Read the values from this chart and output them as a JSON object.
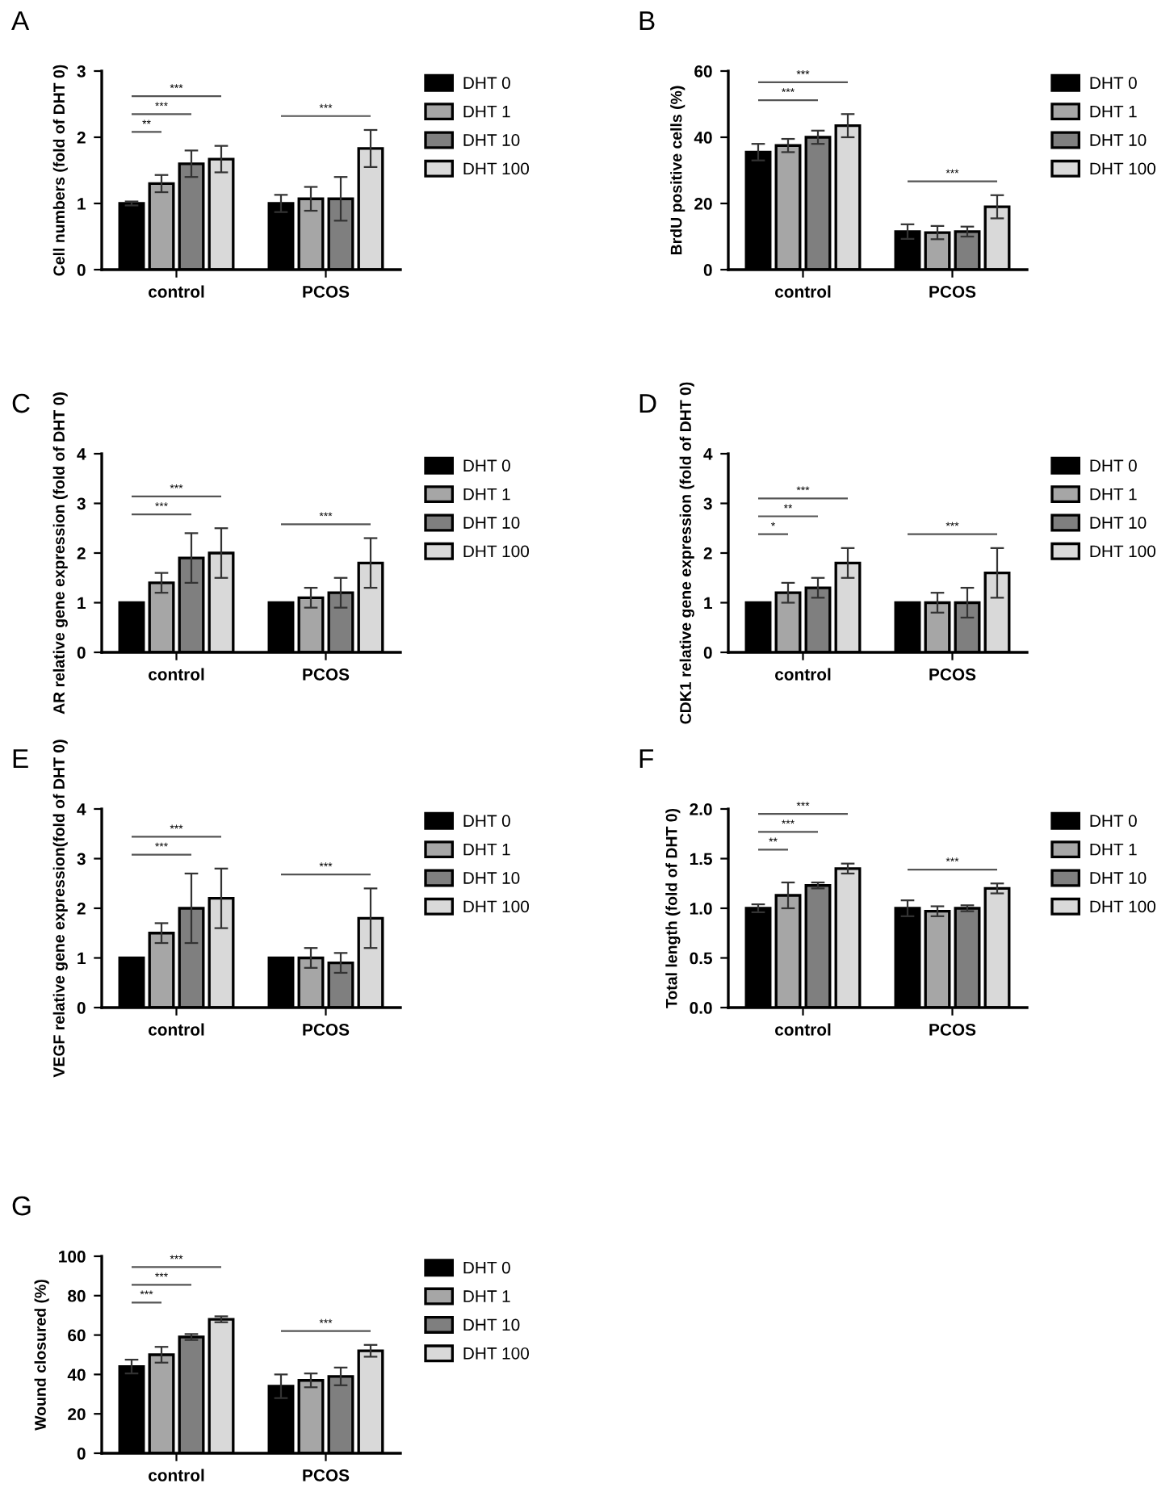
{
  "chart_data": [
    {
      "type": "bar",
      "title": "A",
      "ylabel": "Cell numbers (fold of DHT 0)",
      "categories": [
        "control",
        "PCOS"
      ],
      "legend": "right",
      "grid": false,
      "ylim": [
        0,
        3
      ],
      "yticks": [
        0,
        1,
        2,
        3
      ],
      "series": [
        {
          "name": "DHT 0",
          "color": "#000000",
          "values": [
            1.0,
            1.0
          ],
          "errors": [
            0.03,
            0.13
          ]
        },
        {
          "name": "DHT 1",
          "color": "#a6a6a6",
          "values": [
            1.3,
            1.07
          ],
          "errors": [
            0.13,
            0.18
          ]
        },
        {
          "name": "DHT 10",
          "color": "#7f7f7f",
          "values": [
            1.6,
            1.07
          ],
          "errors": [
            0.2,
            0.33
          ]
        },
        {
          "name": "DHT 100",
          "color": "#d9d9d9",
          "values": [
            1.67,
            1.83
          ],
          "errors": [
            0.2,
            0.28
          ]
        }
      ],
      "annotations": [
        "**",
        "***",
        "***",
        "***"
      ]
    },
    {
      "type": "bar",
      "title": "B",
      "ylabel": "BrdU positive cells (%)",
      "categories": [
        "control",
        "PCOS"
      ],
      "legend": "right",
      "grid": false,
      "ylim": [
        0,
        60
      ],
      "yticks": [
        0,
        20,
        40,
        60
      ],
      "series": [
        {
          "name": "DHT 0",
          "color": "#000000",
          "values": [
            35.5,
            11.5
          ],
          "errors": [
            2.5,
            2.2
          ]
        },
        {
          "name": "DHT 1",
          "color": "#a6a6a6",
          "values": [
            37.5,
            11.2
          ],
          "errors": [
            2,
            2
          ]
        },
        {
          "name": "DHT 10",
          "color": "#7f7f7f",
          "values": [
            40,
            11.5
          ],
          "errors": [
            2,
            1.5
          ]
        },
        {
          "name": "DHT 100",
          "color": "#d9d9d9",
          "values": [
            43.5,
            19
          ],
          "errors": [
            3.5,
            3.5
          ]
        }
      ],
      "annotations": [
        "***",
        "***",
        "***"
      ]
    },
    {
      "type": "bar",
      "title": "C",
      "ylabel": "AR relative gene expression (fold of DHT 0)",
      "categories": [
        "control",
        "PCOS"
      ],
      "legend": "right",
      "grid": false,
      "ylim": [
        0,
        4
      ],
      "yticks": [
        0,
        1,
        2,
        3,
        4
      ],
      "series": [
        {
          "name": "DHT 0",
          "color": "#000000",
          "values": [
            1,
            1
          ],
          "errors": [
            0,
            0
          ]
        },
        {
          "name": "DHT 1",
          "color": "#a6a6a6",
          "values": [
            1.4,
            1.1
          ],
          "errors": [
            0.2,
            0.2
          ]
        },
        {
          "name": "DHT 10",
          "color": "#7f7f7f",
          "values": [
            1.9,
            1.2
          ],
          "errors": [
            0.5,
            0.3
          ]
        },
        {
          "name": "DHT 100",
          "color": "#d9d9d9",
          "values": [
            2.0,
            1.8
          ],
          "errors": [
            0.5,
            0.5
          ]
        }
      ],
      "annotations": [
        "***",
        "***",
        "***"
      ]
    },
    {
      "type": "bar",
      "title": "D",
      "ylabel": "CDK1 relative gene expression (fold of DHT 0)",
      "categories": [
        "control",
        "PCOS"
      ],
      "legend": "right",
      "grid": false,
      "ylim": [
        0,
        4
      ],
      "yticks": [
        0,
        1,
        2,
        3,
        4
      ],
      "series": [
        {
          "name": "DHT 0",
          "color": "#000000",
          "values": [
            1,
            1
          ],
          "errors": [
            0,
            0
          ]
        },
        {
          "name": "DHT 1",
          "color": "#a6a6a6",
          "values": [
            1.2,
            1.0
          ],
          "errors": [
            0.2,
            0.2
          ]
        },
        {
          "name": "DHT 10",
          "color": "#7f7f7f",
          "values": [
            1.3,
            1.0
          ],
          "errors": [
            0.2,
            0.3
          ]
        },
        {
          "name": "DHT 100",
          "color": "#d9d9d9",
          "values": [
            1.8,
            1.6
          ],
          "errors": [
            0.3,
            0.5
          ]
        }
      ],
      "annotations": [
        "*",
        "**",
        "***",
        "***"
      ]
    },
    {
      "type": "bar",
      "title": "E",
      "ylabel": "VEGF relative gene expression(fold of DHT 0)",
      "categories": [
        "control",
        "PCOS"
      ],
      "legend": "right",
      "grid": false,
      "ylim": [
        0,
        4
      ],
      "yticks": [
        0,
        1,
        2,
        3,
        4
      ],
      "series": [
        {
          "name": "DHT 0",
          "color": "#000000",
          "values": [
            1,
            1
          ],
          "errors": [
            0,
            0
          ]
        },
        {
          "name": "DHT 1",
          "color": "#a6a6a6",
          "values": [
            1.5,
            1.0
          ],
          "errors": [
            0.2,
            0.2
          ]
        },
        {
          "name": "DHT 10",
          "color": "#7f7f7f",
          "values": [
            2.0,
            0.9
          ],
          "errors": [
            0.7,
            0.2
          ]
        },
        {
          "name": "DHT 100",
          "color": "#d9d9d9",
          "values": [
            2.2,
            1.8
          ],
          "errors": [
            0.6,
            0.6
          ]
        }
      ],
      "annotations": [
        "***",
        "***",
        "***"
      ]
    },
    {
      "type": "bar",
      "title": "F",
      "ylabel": "Total length (fold of DHT 0)",
      "categories": [
        "control",
        "PCOS"
      ],
      "legend": "right",
      "grid": false,
      "ylim": [
        0,
        2
      ],
      "yticks": [
        {
          "value": 0,
          "label": "0.0"
        },
        0.5,
        {
          "value": 1,
          "label": "1.0"
        },
        1.5,
        {
          "value": 2,
          "label": "2.0"
        }
      ],
      "series": [
        {
          "name": "DHT 0",
          "color": "#000000",
          "values": [
            1.0,
            1.0
          ],
          "errors": [
            0.04,
            0.08
          ]
        },
        {
          "name": "DHT 1",
          "color": "#a6a6a6",
          "values": [
            1.13,
            0.97
          ],
          "errors": [
            0.13,
            0.05
          ]
        },
        {
          "name": "DHT 10",
          "color": "#7f7f7f",
          "values": [
            1.23,
            1.0
          ],
          "errors": [
            0.03,
            0.03
          ]
        },
        {
          "name": "DHT 100",
          "color": "#d9d9d9",
          "values": [
            1.4,
            1.2
          ],
          "errors": [
            0.05,
            0.05
          ]
        }
      ],
      "annotations": [
        "**",
        "***",
        "***",
        "***"
      ]
    },
    {
      "type": "bar",
      "title": "G",
      "ylabel": "Wound closured (%)",
      "categories": [
        "control",
        "PCOS"
      ],
      "legend": "right",
      "grid": false,
      "ylim": [
        0,
        100
      ],
      "yticks": [
        0,
        20,
        40,
        60,
        80,
        100
      ],
      "series": [
        {
          "name": "DHT 0",
          "color": "#000000",
          "values": [
            44,
            34
          ],
          "errors": [
            3.5,
            6
          ]
        },
        {
          "name": "DHT 1",
          "color": "#a6a6a6",
          "values": [
            50,
            37
          ],
          "errors": [
            4,
            3.5
          ]
        },
        {
          "name": "DHT 10",
          "color": "#7f7f7f",
          "values": [
            59,
            39
          ],
          "errors": [
            1.5,
            4.5
          ]
        },
        {
          "name": "DHT 100",
          "color": "#d9d9d9",
          "values": [
            68,
            52
          ],
          "errors": [
            1.5,
            3
          ]
        }
      ],
      "annotations": [
        "***",
        "***",
        "***",
        "***"
      ]
    }
  ]
}
